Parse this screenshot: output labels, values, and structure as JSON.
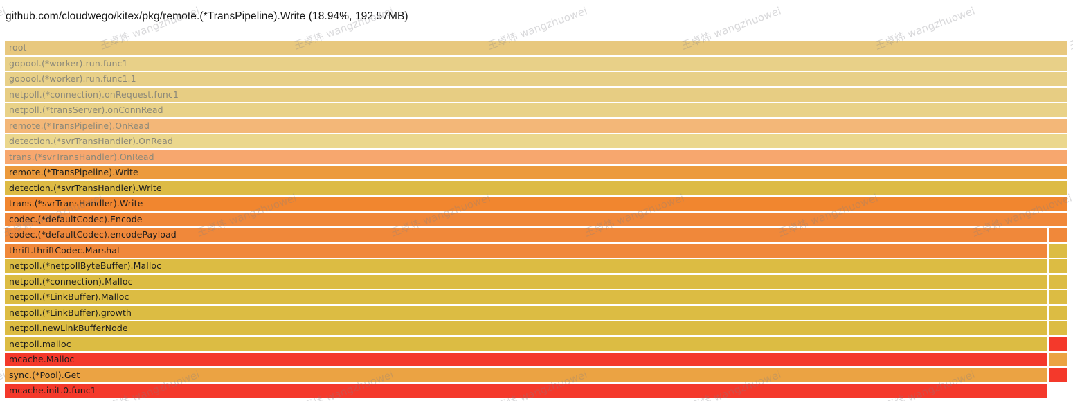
{
  "header": {
    "title": "github.com/cloudwego/kitex/pkg/remote.(*TransPipeline).Write (18.94%, 192.57MB)"
  },
  "watermark": {
    "text": "王卓炜 wangzhuowei"
  },
  "chart_data": {
    "type": "flamegraph",
    "title": "github.com/cloudwego/kitex/pkg/remote.(*TransPipeline).Write (18.94%, 192.57MB)",
    "selected_frame": "remote.(*TransPipeline).Write",
    "selected_percent": "18.94%",
    "selected_size": "192.57MB",
    "faded_text_color": "#8b8879",
    "text_color": "#1d1d1d",
    "rows": [
      {
        "label": "root",
        "color": "#e8c87e",
        "text": "faded",
        "full": true,
        "right_color": null
      },
      {
        "label": "gopool.(*worker).run.func1",
        "color": "#e8d088",
        "text": "faded",
        "full": true,
        "right_color": null
      },
      {
        "label": "gopool.(*worker).run.func1.1",
        "color": "#e8d088",
        "text": "faded",
        "full": true,
        "right_color": null
      },
      {
        "label": "netpoll.(*connection).onRequest.func1",
        "color": "#e7cd83",
        "text": "faded",
        "full": true,
        "right_color": null
      },
      {
        "label": "netpoll.(*transServer).onConnRead",
        "color": "#e9d288",
        "text": "faded",
        "full": true,
        "right_color": null
      },
      {
        "label": "remote.(*TransPipeline).OnRead",
        "color": "#f3b778",
        "text": "faded",
        "full": true,
        "right_color": null
      },
      {
        "label": "detection.(*svrTransHandler).OnRead",
        "color": "#ebd78d",
        "text": "faded",
        "full": true,
        "right_color": null
      },
      {
        "label": "trans.(*svrTransHandler).OnRead",
        "color": "#f7a76e",
        "text": "faded",
        "full": true,
        "right_color": null
      },
      {
        "label": "remote.(*TransPipeline).Write",
        "color": "#ec9a3c",
        "text": "dark",
        "full": true,
        "right_color": null
      },
      {
        "label": "detection.(*svrTransHandler).Write",
        "color": "#ddbb45",
        "text": "dark",
        "full": true,
        "right_color": null
      },
      {
        "label": "trans.(*svrTransHandler).Write",
        "color": "#f1862f",
        "text": "dark",
        "full": true,
        "right_color": null
      },
      {
        "label": "codec.(*defaultCodec).Encode",
        "color": "#f0883a",
        "text": "dark",
        "full": true,
        "right_color": null
      },
      {
        "label": "codec.(*defaultCodec).encodePayload",
        "color": "#f0883a",
        "text": "dark",
        "full": false,
        "right_color": "#f0883a"
      },
      {
        "label": "thrift.thriftCodec.Marshal",
        "color": "#f0883a",
        "text": "dark",
        "full": false,
        "right_color": "#dcbc43"
      },
      {
        "label": "netpoll.(*netpollByteBuffer).Malloc",
        "color": "#dcbc43",
        "text": "dark",
        "full": false,
        "right_color": "#dcbc43"
      },
      {
        "label": "netpoll.(*connection).Malloc",
        "color": "#dcbc43",
        "text": "dark",
        "full": false,
        "right_color": "#dcbc43"
      },
      {
        "label": "netpoll.(*LinkBuffer).Malloc",
        "color": "#dcbc43",
        "text": "dark",
        "full": false,
        "right_color": "#dcbc43"
      },
      {
        "label": "netpoll.(*LinkBuffer).growth",
        "color": "#dcbc43",
        "text": "dark",
        "full": false,
        "right_color": "#dcbc43"
      },
      {
        "label": "netpoll.newLinkBufferNode",
        "color": "#dcbc43",
        "text": "dark",
        "full": false,
        "right_color": "#dcbc43"
      },
      {
        "label": "netpoll.malloc",
        "color": "#dcbc43",
        "text": "dark",
        "full": false,
        "right_color": "#f4392b"
      },
      {
        "label": "mcache.Malloc",
        "color": "#f4392b",
        "text": "dark",
        "full": false,
        "right_color": "#eba343"
      },
      {
        "label": "sync.(*Pool).Get",
        "color": "#eba343",
        "text": "dark",
        "full": false,
        "right_color": "#f4392b"
      },
      {
        "label": "mcache.init.0.func1",
        "color": "#f4392b",
        "text": "dark",
        "full": false,
        "right_color": null
      }
    ]
  }
}
